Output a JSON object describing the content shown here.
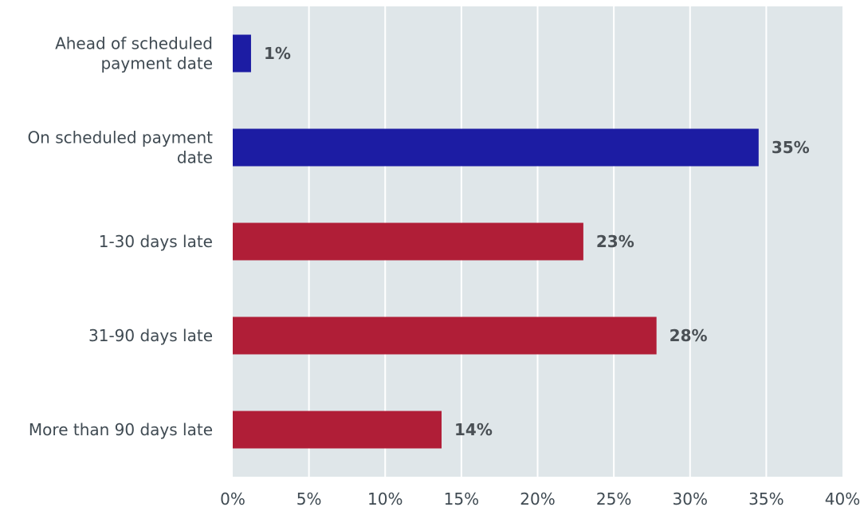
{
  "chart_data": {
    "type": "bar",
    "orientation": "horizontal",
    "title": "",
    "xlabel": "",
    "ylabel": "",
    "categories": [
      [
        "Ahead of scheduled",
        "payment date"
      ],
      [
        "On scheduled payment",
        "date"
      ],
      [
        "1-30 days late"
      ],
      [
        "31-90 days late"
      ],
      [
        "More than 90 days late"
      ]
    ],
    "values": [
      1.2,
      34.5,
      23,
      27.8,
      13.7
    ],
    "data_labels": [
      "1%",
      "35%",
      "23%",
      "28%",
      "14%"
    ],
    "bar_colors": [
      "#1c1ca3",
      "#1c1ca3",
      "#b01e37",
      "#b01e37",
      "#b01e37"
    ],
    "xlim": [
      0,
      40
    ],
    "x_ticks": [
      0,
      5,
      10,
      15,
      20,
      25,
      30,
      35,
      40
    ],
    "x_tick_labels": [
      "0%",
      "5%",
      "10%",
      "15%",
      "20%",
      "25%",
      "30%",
      "35%",
      "40%"
    ],
    "grid": true,
    "plot_background": "#dfe6e9",
    "grid_color": "#ffffff",
    "legend": "none"
  }
}
